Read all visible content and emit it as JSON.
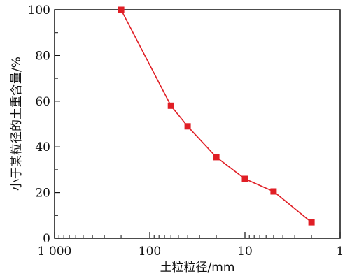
{
  "chart_data": {
    "type": "line",
    "title": "",
    "xlabel": "土粒粒径/mm",
    "ylabel": "小于某粒径的土重含量/%",
    "x_scale": "log",
    "x_reversed": true,
    "xlim": [
      1000,
      1
    ],
    "ylim": [
      0,
      100
    ],
    "x_ticks": [
      1000,
      100,
      10,
      1
    ],
    "x_tick_labels": [
      "1 000",
      "100",
      "10",
      "1"
    ],
    "y_ticks": [
      0,
      20,
      40,
      60,
      80,
      100
    ],
    "y_tick_labels": [
      "0",
      "20",
      "40",
      "60",
      "80",
      "100"
    ],
    "grid": false,
    "series": [
      {
        "color": "#e01e25",
        "marker": "square",
        "x": [
          200,
          60,
          40,
          20,
          10,
          5,
          2
        ],
        "y": [
          100,
          58,
          49,
          35.5,
          26,
          20.5,
          7
        ]
      }
    ]
  }
}
